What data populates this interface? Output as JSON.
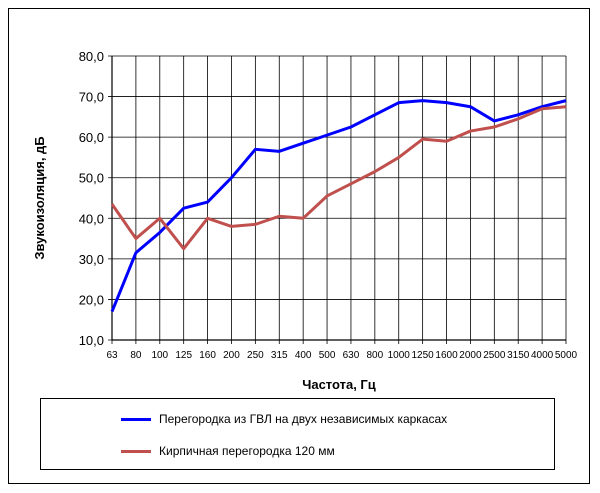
{
  "chart_data": {
    "type": "line",
    "title": "",
    "xlabel": "Частота, Гц",
    "ylabel": "Звукоизоляция, дБ",
    "ylim": [
      10,
      80
    ],
    "yticks": [
      "10,0",
      "20,0",
      "30,0",
      "40,0",
      "50,0",
      "60,0",
      "70,0",
      "80,0"
    ],
    "grid": true,
    "legend_position": "bottom",
    "categories": [
      "63",
      "80",
      "100",
      "125",
      "160",
      "200",
      "250",
      "315",
      "400",
      "500",
      "630",
      "800",
      "1000",
      "1250",
      "1600",
      "2000",
      "2500",
      "3150",
      "4000",
      "5000"
    ],
    "series": [
      {
        "name": "Перегородка из ГВЛ на двух независимых каркасах",
        "color": "#0000ff",
        "values": [
          17,
          31.5,
          36.5,
          42.5,
          44,
          50,
          57,
          56.5,
          58.5,
          60.5,
          62.5,
          65.5,
          68.5,
          69,
          68.5,
          67.5,
          64,
          65.5,
          67.5,
          69
        ]
      },
      {
        "name": "Кирпичная перегородка 120 мм",
        "color": "#c0504d",
        "values": [
          43.5,
          35,
          40,
          32.5,
          40,
          38,
          38.5,
          40.5,
          40,
          45.5,
          48.5,
          51.5,
          55,
          59.5,
          59,
          61.5,
          62.5,
          64.5,
          67,
          67.5
        ]
      }
    ]
  }
}
